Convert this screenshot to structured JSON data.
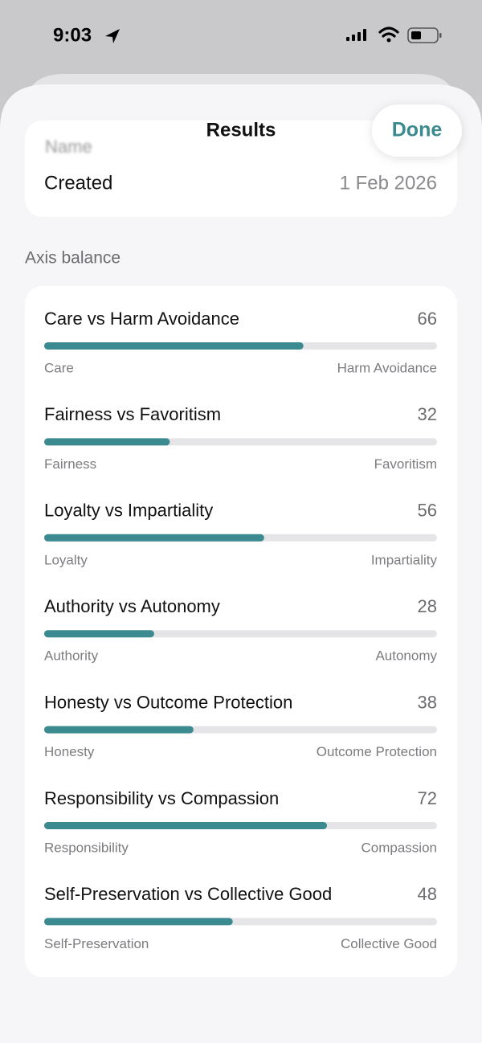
{
  "status_bar": {
    "time": "9:03"
  },
  "header": {
    "title": "Results",
    "done_button": "Done"
  },
  "details": {
    "name_label": "Name",
    "created_label": "Created",
    "created_value": "1 Feb 2026"
  },
  "axis_balance": {
    "title": "Axis balance",
    "xlim": [
      0,
      100
    ],
    "axes": [
      {
        "name": "Care vs Harm Avoidance",
        "value": 66,
        "left_label": "Care",
        "right_label": "Harm Avoidance"
      },
      {
        "name": "Fairness vs Favoritism",
        "value": 32,
        "left_label": "Fairness",
        "right_label": "Favoritism"
      },
      {
        "name": "Loyalty vs Impartiality",
        "value": 56,
        "left_label": "Loyalty",
        "right_label": "Impartiality"
      },
      {
        "name": "Authority vs Autonomy",
        "value": 28,
        "left_label": "Authority",
        "right_label": "Autonomy"
      },
      {
        "name": "Honesty vs Outcome Protection",
        "value": 38,
        "left_label": "Honesty",
        "right_label": "Outcome Protection"
      },
      {
        "name": "Responsibility vs Compassion",
        "value": 72,
        "left_label": "Responsibility",
        "right_label": "Compassion"
      },
      {
        "name": "Self-Preservation vs Collective Good",
        "value": 48,
        "left_label": "Self-Preservation",
        "right_label": "Collective Good"
      }
    ]
  }
}
